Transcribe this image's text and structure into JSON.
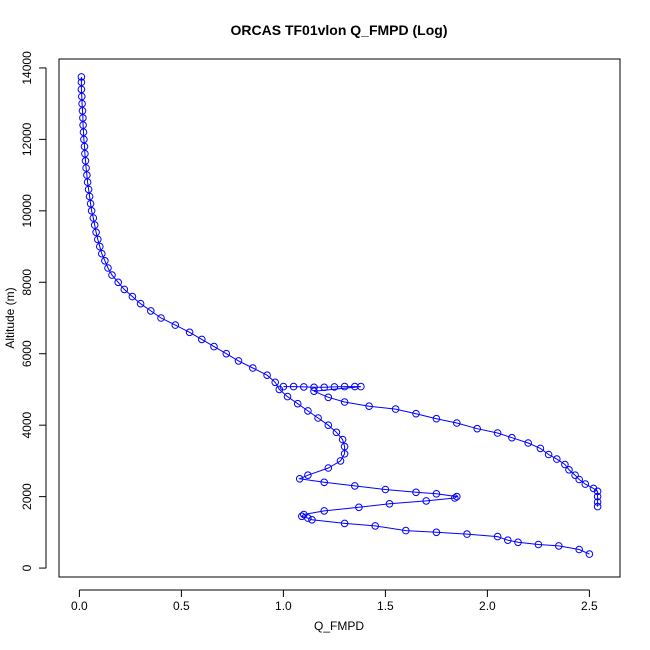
{
  "chart_data": {
    "type": "scatter",
    "title": "ORCAS TF01vlon Q_FMPD (Log)",
    "xlabel": "Q_FMPD",
    "ylabel": "Altitude (m)",
    "xlim": [
      -0.1,
      2.65
    ],
    "ylim": [
      -250,
      14250
    ],
    "x_ticks": [
      0.0,
      0.5,
      1.0,
      1.5,
      2.0,
      2.5
    ],
    "x_tick_labels": [
      "0.0",
      "0.5",
      "1.0",
      "1.5",
      "2.0",
      "2.5"
    ],
    "y_ticks": [
      0,
      2000,
      4000,
      6000,
      8000,
      10000,
      12000,
      14000
    ],
    "y_tick_labels": [
      "0",
      "2000",
      "4000",
      "6000",
      "8000",
      "10000",
      "12000",
      "14000"
    ],
    "grid": false,
    "marker": "open-circle",
    "connected": true,
    "color": "#0000ff",
    "series": [
      {
        "points": [
          [
            0.01,
            13750
          ],
          [
            0.01,
            13600
          ],
          [
            0.01,
            13400
          ],
          [
            0.012,
            13200
          ],
          [
            0.013,
            13000
          ],
          [
            0.015,
            12800
          ],
          [
            0.017,
            12600
          ],
          [
            0.018,
            12400
          ],
          [
            0.02,
            12200
          ],
          [
            0.022,
            12000
          ],
          [
            0.025,
            11800
          ],
          [
            0.027,
            11600
          ],
          [
            0.03,
            11400
          ],
          [
            0.033,
            11200
          ],
          [
            0.037,
            11000
          ],
          [
            0.04,
            10800
          ],
          [
            0.045,
            10600
          ],
          [
            0.05,
            10400
          ],
          [
            0.055,
            10200
          ],
          [
            0.06,
            10000
          ],
          [
            0.068,
            9800
          ],
          [
            0.075,
            9600
          ],
          [
            0.082,
            9400
          ],
          [
            0.09,
            9200
          ],
          [
            0.1,
            9000
          ],
          [
            0.11,
            8800
          ],
          [
            0.125,
            8600
          ],
          [
            0.14,
            8400
          ],
          [
            0.16,
            8200
          ],
          [
            0.19,
            8000
          ],
          [
            0.22,
            7800
          ],
          [
            0.26,
            7600
          ],
          [
            0.3,
            7400
          ],
          [
            0.35,
            7200
          ],
          [
            0.4,
            7000
          ],
          [
            0.47,
            6800
          ],
          [
            0.54,
            6600
          ],
          [
            0.6,
            6400
          ],
          [
            0.66,
            6200
          ],
          [
            0.72,
            6000
          ],
          [
            0.78,
            5800
          ],
          [
            0.85,
            5600
          ],
          [
            0.92,
            5400
          ],
          [
            0.96,
            5200
          ],
          [
            0.98,
            5000
          ],
          [
            1.02,
            4800
          ],
          [
            1.07,
            4600
          ],
          [
            1.12,
            4400
          ],
          [
            1.17,
            4200
          ],
          [
            1.22,
            4000
          ],
          [
            1.26,
            3800
          ],
          [
            1.29,
            3600
          ],
          [
            1.3,
            3400
          ],
          [
            1.3,
            3200
          ],
          [
            1.28,
            3000
          ],
          [
            1.22,
            2800
          ],
          [
            1.12,
            2600
          ],
          [
            1.08,
            2500
          ],
          [
            1.2,
            2400
          ],
          [
            1.35,
            2300
          ],
          [
            1.5,
            2200
          ],
          [
            1.65,
            2120
          ],
          [
            1.75,
            2080
          ],
          [
            1.85,
            2000
          ],
          [
            1.84,
            1960
          ],
          [
            1.7,
            1880
          ],
          [
            1.52,
            1800
          ],
          [
            1.37,
            1700
          ],
          [
            1.2,
            1600
          ],
          [
            1.1,
            1500
          ],
          [
            1.09,
            1450
          ],
          [
            1.12,
            1400
          ],
          [
            1.14,
            1350
          ],
          [
            1.3,
            1250
          ],
          [
            1.45,
            1180
          ],
          [
            1.6,
            1050
          ],
          [
            1.75,
            1000
          ],
          [
            1.9,
            950
          ],
          [
            2.05,
            880
          ],
          [
            2.1,
            780
          ],
          [
            2.15,
            720
          ],
          [
            2.25,
            660
          ],
          [
            2.35,
            620
          ],
          [
            2.45,
            520
          ],
          [
            2.5,
            390
          ]
        ]
      },
      {
        "points": [
          [
            1.0,
            5080
          ],
          [
            1.05,
            5080
          ],
          [
            1.1,
            5070
          ],
          [
            1.15,
            5060
          ],
          [
            1.2,
            5060
          ],
          [
            1.25,
            5070
          ],
          [
            1.3,
            5080
          ],
          [
            1.35,
            5080
          ],
          [
            1.38,
            5080
          ],
          [
            1.15,
            4950
          ],
          [
            1.22,
            4780
          ],
          [
            1.3,
            4650
          ],
          [
            1.42,
            4530
          ],
          [
            1.55,
            4450
          ],
          [
            1.65,
            4320
          ],
          [
            1.75,
            4180
          ],
          [
            1.85,
            4060
          ],
          [
            1.95,
            3900
          ],
          [
            2.05,
            3780
          ],
          [
            2.12,
            3650
          ],
          [
            2.2,
            3500
          ],
          [
            2.26,
            3350
          ],
          [
            2.3,
            3180
          ],
          [
            2.34,
            3050
          ],
          [
            2.38,
            2900
          ],
          [
            2.4,
            2750
          ],
          [
            2.43,
            2600
          ],
          [
            2.45,
            2480
          ],
          [
            2.48,
            2350
          ],
          [
            2.52,
            2230
          ],
          [
            2.54,
            2150
          ],
          [
            2.54,
            2000
          ],
          [
            2.54,
            1850
          ],
          [
            2.54,
            1720
          ]
        ]
      }
    ]
  }
}
